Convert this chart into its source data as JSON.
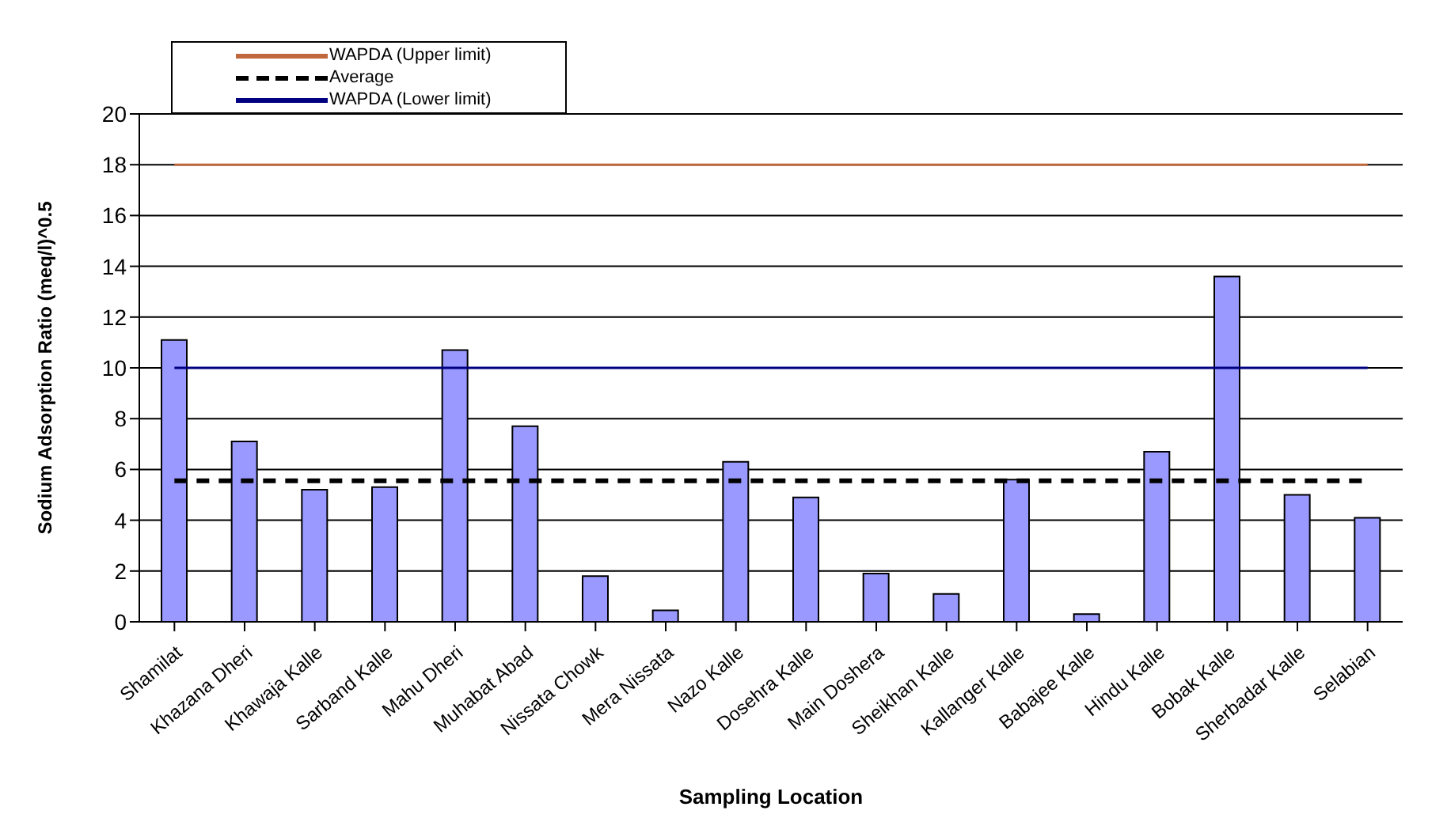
{
  "chart_data": {
    "type": "bar",
    "xlabel": "Sampling Location",
    "ylabel": "Sodium Adsorption Ratio (meq/l)^0.5",
    "categories": [
      "Shamilat",
      "Khazana Dheri",
      "Khawaja Kalle",
      "Sarband Kalle",
      "Mahu Dheri",
      "Muhabat Abad",
      "Nissata Chowk",
      "Mera Nissata",
      "Nazo Kalle",
      "Dosehra Kalle",
      "Main Doshera",
      "Sheikhan Kalle",
      "Kallanger Kalle",
      "Babajee Kalle",
      "Hindu Kalle",
      "Bobak Kalle",
      "Sherbadar Kalle",
      "Selabian"
    ],
    "series": [
      {
        "type": "bar",
        "color": "#9999ff",
        "values": [
          11.1,
          7.1,
          5.2,
          5.3,
          10.7,
          7.7,
          1.8,
          0.45,
          6.3,
          4.9,
          1.9,
          1.1,
          5.6,
          0.3,
          6.7,
          13.6,
          5.0,
          4.1
        ]
      },
      {
        "type": "line",
        "name": "WAPDA (Upper limit)",
        "color": "#c0683c",
        "line_style": "solid",
        "values": [
          18,
          18,
          18,
          18,
          18,
          18,
          18,
          18,
          18,
          18,
          18,
          18,
          18,
          18,
          18,
          18,
          18,
          18
        ]
      },
      {
        "type": "line",
        "name": "Average",
        "color": "#000000",
        "line_style": "dashed",
        "values": [
          5.55,
          5.55,
          5.55,
          5.55,
          5.55,
          5.55,
          5.55,
          5.55,
          5.55,
          5.55,
          5.55,
          5.55,
          5.55,
          5.55,
          5.55,
          5.55,
          5.55,
          5.55
        ]
      },
      {
        "type": "line",
        "name": "WAPDA (Lower limit)",
        "color": "#000080",
        "line_style": "solid",
        "values": [
          10,
          10,
          10,
          10,
          10,
          10,
          10,
          10,
          10,
          10,
          10,
          10,
          10,
          10,
          10,
          10,
          10,
          10
        ]
      }
    ],
    "ylim": [
      0,
      20
    ],
    "yticks": [
      0,
      2,
      4,
      6,
      8,
      10,
      12,
      14,
      16,
      18,
      20
    ],
    "grid": "y",
    "legend": "top left",
    "marker": "none"
  }
}
